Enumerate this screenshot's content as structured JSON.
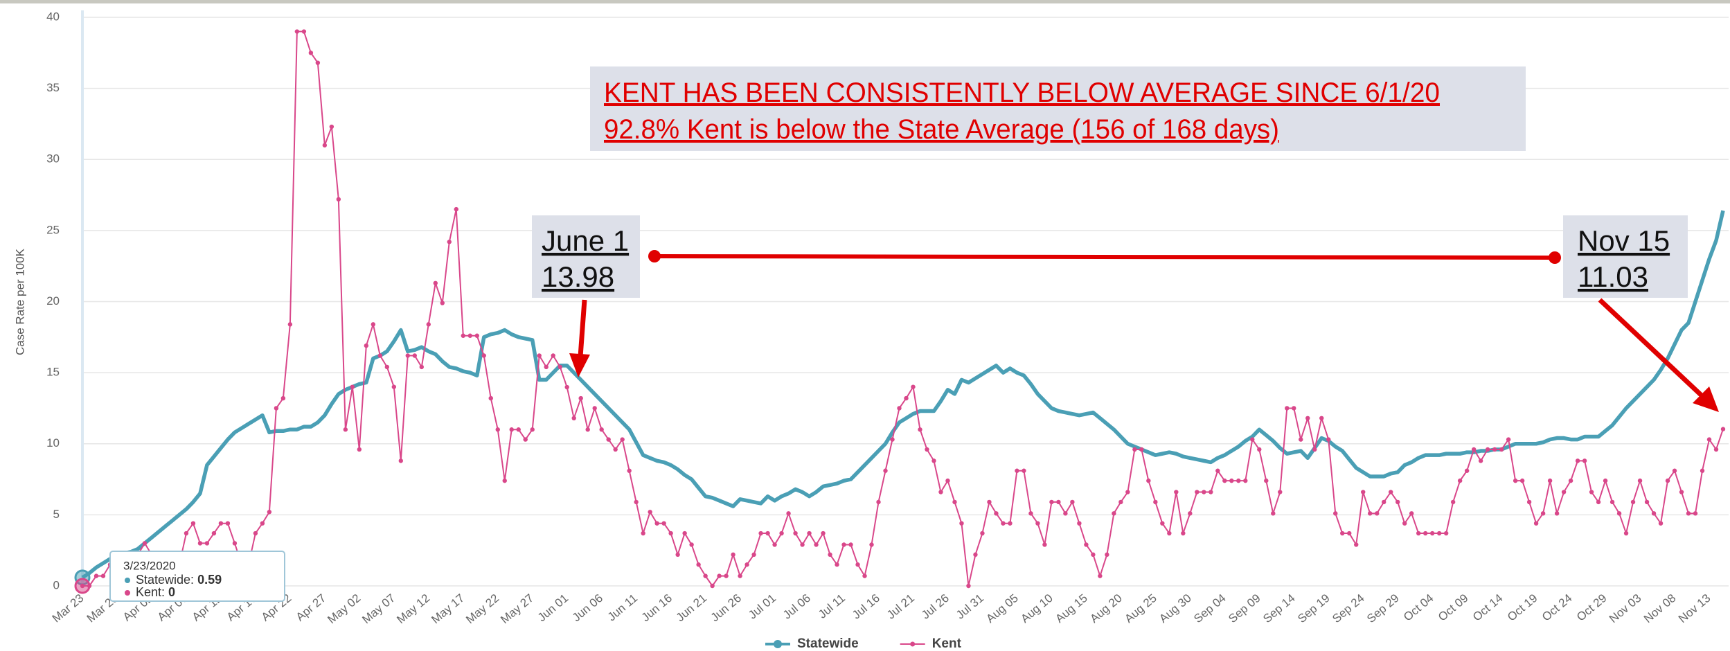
{
  "chart_data": {
    "type": "line",
    "y_label": "Case Rate per 100K",
    "ylim": [
      0,
      40
    ],
    "yticks": [
      0,
      5,
      10,
      15,
      20,
      25,
      30,
      35,
      40
    ],
    "grid": true,
    "categories": [
      "Mar 23",
      null,
      null,
      null,
      null,
      "Mar 28",
      null,
      null,
      null,
      null,
      "Apr 02",
      null,
      null,
      null,
      null,
      "Apr 07",
      null,
      null,
      null,
      null,
      "Apr 12",
      null,
      null,
      null,
      null,
      "Apr 17",
      null,
      null,
      null,
      null,
      "Apr 22",
      null,
      null,
      null,
      null,
      "Apr 27",
      null,
      null,
      null,
      null,
      "May 02",
      null,
      null,
      null,
      null,
      "May 07",
      null,
      null,
      null,
      null,
      "May 12",
      null,
      null,
      null,
      null,
      "May 17",
      null,
      null,
      null,
      null,
      "May 22",
      null,
      null,
      null,
      null,
      "May 27",
      null,
      null,
      null,
      null,
      "Jun 01",
      null,
      null,
      null,
      null,
      "Jun 06",
      null,
      null,
      null,
      null,
      "Jun 11",
      null,
      null,
      null,
      null,
      "Jun 16",
      null,
      null,
      null,
      null,
      "Jun 21",
      null,
      null,
      null,
      null,
      "Jun 26",
      null,
      null,
      null,
      null,
      "Jul 01",
      null,
      null,
      null,
      null,
      "Jul 06",
      null,
      null,
      null,
      null,
      "Jul 11",
      null,
      null,
      null,
      null,
      "Jul 16",
      null,
      null,
      null,
      null,
      "Jul 21",
      null,
      null,
      null,
      null,
      "Jul 26",
      null,
      null,
      null,
      null,
      "Jul 31",
      null,
      null,
      null,
      null,
      "Aug 05",
      null,
      null,
      null,
      null,
      "Aug 10",
      null,
      null,
      null,
      null,
      "Aug 15",
      null,
      null,
      null,
      null,
      "Aug 20",
      null,
      null,
      null,
      null,
      "Aug 25",
      null,
      null,
      null,
      null,
      "Aug 30",
      null,
      null,
      null,
      null,
      "Sep 04",
      null,
      null,
      null,
      null,
      "Sep 09",
      null,
      null,
      null,
      null,
      "Sep 14",
      null,
      null,
      null,
      null,
      "Sep 19",
      null,
      null,
      null,
      null,
      "Sep 24",
      null,
      null,
      null,
      null,
      "Sep 29",
      null,
      null,
      null,
      null,
      "Oct 04",
      null,
      null,
      null,
      null,
      "Oct 09",
      null,
      null,
      null,
      null,
      "Oct 14",
      null,
      null,
      null,
      null,
      "Oct 19",
      null,
      null,
      null,
      null,
      "Oct 24",
      null,
      null,
      null,
      null,
      "Oct 29",
      null,
      null,
      null,
      null,
      "Nov 03",
      null,
      null,
      null,
      null,
      "Nov 08",
      null,
      null,
      null,
      null,
      "Nov 13",
      null,
      null
    ],
    "series": [
      {
        "name": "Statewide",
        "color": "#4a9fb5",
        "values": [
          0.59,
          0.9,
          1.3,
          1.6,
          1.9,
          2.2,
          2.3,
          2.4,
          2.6,
          3.0,
          3.4,
          3.8,
          4.2,
          4.6,
          5.0,
          5.4,
          5.9,
          6.5,
          8.5,
          9.1,
          9.7,
          10.3,
          10.8,
          11.1,
          11.4,
          11.7,
          12.0,
          10.8,
          10.9,
          10.9,
          11.0,
          11.0,
          11.2,
          11.2,
          11.5,
          12.0,
          12.8,
          13.5,
          13.8,
          14.0,
          14.2,
          14.3,
          16.0,
          16.2,
          16.5,
          17.2,
          18.0,
          16.5,
          16.6,
          16.8,
          16.5,
          16.3,
          15.8,
          15.4,
          15.3,
          15.1,
          15.0,
          14.8,
          17.5,
          17.7,
          17.8,
          18.0,
          17.7,
          17.5,
          17.4,
          17.3,
          14.5,
          14.5,
          15.0,
          15.5,
          15.5,
          15.0,
          14.5,
          14.0,
          13.5,
          13.0,
          12.5,
          12.0,
          11.5,
          11.0,
          10.1,
          9.2,
          9.0,
          8.8,
          8.7,
          8.5,
          8.2,
          7.8,
          7.5,
          6.9,
          6.3,
          6.2,
          6.0,
          5.8,
          5.6,
          6.1,
          6.0,
          5.9,
          5.8,
          6.3,
          6.0,
          6.3,
          6.5,
          6.8,
          6.6,
          6.3,
          6.6,
          7.0,
          7.1,
          7.2,
          7.4,
          7.5,
          8.0,
          8.5,
          9.0,
          9.5,
          10.0,
          10.8,
          11.5,
          11.8,
          12.1,
          12.3,
          12.3,
          12.3,
          13.0,
          13.8,
          13.5,
          14.5,
          14.3,
          14.6,
          14.9,
          15.2,
          15.5,
          15.0,
          15.3,
          15.0,
          14.8,
          14.2,
          13.5,
          13.0,
          12.5,
          12.3,
          12.2,
          12.1,
          12.0,
          12.1,
          12.2,
          11.8,
          11.4,
          11.0,
          10.5,
          10.0,
          9.8,
          9.6,
          9.4,
          9.2,
          9.3,
          9.4,
          9.3,
          9.1,
          9.0,
          8.9,
          8.8,
          8.7,
          9.0,
          9.2,
          9.5,
          9.8,
          10.2,
          10.5,
          11.0,
          10.6,
          10.2,
          9.7,
          9.3,
          9.4,
          9.5,
          9.0,
          9.7,
          10.4,
          10.2,
          9.8,
          9.5,
          8.9,
          8.3,
          8.0,
          7.7,
          7.7,
          7.7,
          7.9,
          8.0,
          8.5,
          8.7,
          9.0,
          9.2,
          9.2,
          9.2,
          9.3,
          9.3,
          9.3,
          9.4,
          9.4,
          9.5,
          9.5,
          9.6,
          9.6,
          9.8,
          10.0,
          10.0,
          10.0,
          10.0,
          10.1,
          10.3,
          10.4,
          10.4,
          10.3,
          10.3,
          10.5,
          10.5,
          10.5,
          10.9,
          11.3,
          11.9,
          12.5,
          13.0,
          13.5,
          14.0,
          14.5,
          15.2,
          16.0,
          17.0,
          18.0,
          18.5,
          20.0,
          21.5,
          23.0,
          24.3,
          26.4
        ]
      },
      {
        "name": "Kent",
        "color": "#d9478a",
        "markers": true,
        "values": [
          0,
          0,
          0.7,
          0.7,
          1.5,
          1.5,
          1.5,
          2.2,
          2.2,
          3,
          2.2,
          1.5,
          1.5,
          0.7,
          1.5,
          3.7,
          4.4,
          3,
          3,
          3.7,
          4.4,
          4.4,
          3,
          1.5,
          1.5,
          3.7,
          4.4,
          5.2,
          12.5,
          13.2,
          18.4,
          39,
          39,
          37.5,
          36.8,
          31,
          32.3,
          27.2,
          11,
          14,
          9.6,
          16.9,
          18.4,
          16.2,
          15.4,
          14,
          8.8,
          16.2,
          16.2,
          15.4,
          18.4,
          21.3,
          19.9,
          24.2,
          26.5,
          17.6,
          17.6,
          17.6,
          16.2,
          13.2,
          11,
          7.4,
          11,
          11,
          10.3,
          11,
          16.2,
          15.4,
          16.2,
          15.4,
          13.98,
          11.8,
          13.2,
          11,
          12.5,
          11,
          10.3,
          9.6,
          10.3,
          8.1,
          5.9,
          3.7,
          5.2,
          4.4,
          4.4,
          3.7,
          2.2,
          3.7,
          2.9,
          1.5,
          0.7,
          0,
          0.7,
          0.7,
          2.2,
          0.7,
          1.5,
          2.2,
          3.7,
          3.7,
          2.9,
          3.7,
          5.1,
          3.7,
          2.9,
          3.7,
          2.9,
          3.7,
          2.2,
          1.5,
          2.9,
          2.9,
          1.5,
          0.7,
          2.9,
          5.9,
          8.1,
          10.3,
          12.5,
          13.2,
          14,
          11,
          9.6,
          8.8,
          6.6,
          7.4,
          5.9,
          4.4,
          0,
          2.2,
          3.7,
          5.9,
          5.1,
          4.4,
          4.4,
          8.1,
          8.1,
          5.1,
          4.4,
          2.9,
          5.9,
          5.9,
          5.1,
          5.9,
          4.4,
          2.9,
          2.2,
          0.7,
          2.2,
          5.1,
          5.9,
          6.6,
          9.6,
          9.6,
          7.4,
          5.9,
          4.4,
          3.7,
          6.6,
          3.7,
          5.1,
          6.6,
          6.6,
          6.6,
          8.1,
          7.4,
          7.4,
          7.4,
          7.4,
          10.3,
          9.6,
          7.4,
          5.1,
          6.6,
          12.5,
          12.5,
          10.3,
          11.8,
          9.6,
          11.8,
          10.3,
          5.1,
          3.7,
          3.7,
          2.9,
          6.6,
          5.1,
          5.1,
          5.9,
          6.6,
          5.9,
          4.4,
          5.1,
          3.7,
          3.7,
          3.7,
          3.7,
          3.7,
          5.9,
          7.4,
          8.1,
          9.6,
          8.8,
          9.6,
          9.6,
          9.6,
          10.3,
          7.4,
          7.4,
          5.9,
          4.4,
          5.1,
          7.4,
          5.1,
          6.6,
          7.4,
          8.8,
          8.8,
          6.6,
          5.9,
          7.4,
          5.9,
          5.1,
          3.7,
          5.9,
          7.4,
          5.9,
          5.1,
          4.4,
          7.4,
          8.1,
          6.6,
          5.1,
          5.1,
          8.1,
          10.3,
          9.6,
          11.03
        ]
      }
    ],
    "legend": "bottom",
    "annotations": {
      "headline": "KENT HAS BEEN CONSISTENTLY BELOW AVERAGE SINCE 6/1/20",
      "subline": "92.8% Kent is below the State Average (156 of 168 days)",
      "june_label": "June 1",
      "nov_label": "Nov 15"
    },
    "tooltip": {
      "date": "3/23/2020",
      "items": [
        {
          "label": "Statewide:",
          "value": 0.59
        },
        {
          "label": "Kent:",
          "value": 0
        }
      ]
    }
  }
}
